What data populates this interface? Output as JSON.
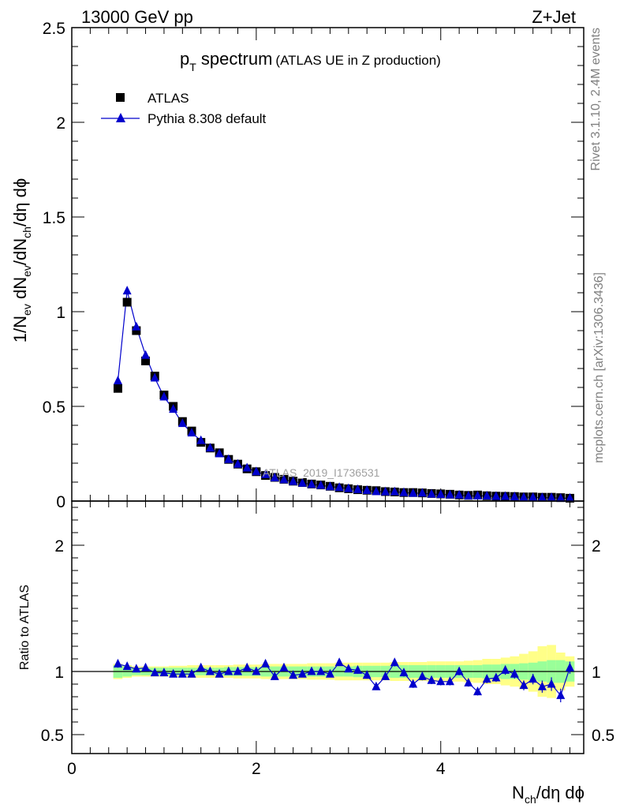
{
  "header": {
    "left": "13000 GeV pp",
    "right": "Z+Jet"
  },
  "title": {
    "main_p": "p",
    "main_sub": "T",
    "main_rest": " spectrum",
    "paren": "(ATLAS UE in Z production)"
  },
  "side": {
    "rivet": "Rivet 3.1.10,  2.4M events",
    "mcplots": "mcplots.cern.ch [arXiv:1306.3436]"
  },
  "watermark": "ATLAS_2019_I1736531",
  "legend": {
    "data_label": "ATLAS",
    "mc_label": "Pythia 8.308 default"
  },
  "axes": {
    "ylabel_parts": [
      "1/N",
      "ev",
      " dN",
      "ev",
      "/dN",
      "ch",
      "/dη dϕ"
    ],
    "ratio_ylabel": "Ratio to ATLAS",
    "xlabel_parts": [
      "N",
      "ch",
      "/dη dϕ"
    ]
  },
  "colors": {
    "data": "#000000",
    "mc": "#0000cc",
    "band_inner": "#99ff99",
    "band_outer": "#ffff88",
    "side_text": "#808080"
  },
  "chart_data": [
    {
      "type": "scatter",
      "panel": "main",
      "xlim": [
        0,
        5.55
      ],
      "ylim": [
        0,
        2.5
      ],
      "y_ticks": [
        "0",
        "0.5",
        "1",
        "1.5",
        "2",
        "2.5"
      ],
      "y_tick_values": [
        0,
        0.5,
        1,
        1.5,
        2,
        2.5
      ],
      "x": [
        0.5,
        0.6,
        0.7,
        0.8,
        0.9,
        1.0,
        1.1,
        1.2,
        1.3,
        1.4,
        1.5,
        1.6,
        1.7,
        1.8,
        1.9,
        2.0,
        2.1,
        2.2,
        2.3,
        2.4,
        2.5,
        2.6,
        2.7,
        2.8,
        2.9,
        3.0,
        3.1,
        3.2,
        3.3,
        3.4,
        3.5,
        3.6,
        3.7,
        3.8,
        3.9,
        4.0,
        4.1,
        4.2,
        4.3,
        4.4,
        4.5,
        4.6,
        4.7,
        4.8,
        4.9,
        5.0,
        5.1,
        5.2,
        5.3,
        5.4
      ],
      "series": [
        {
          "name": "ATLAS",
          "values": [
            0.595,
            1.05,
            0.9,
            0.74,
            0.66,
            0.56,
            0.5,
            0.42,
            0.37,
            0.31,
            0.28,
            0.255,
            0.22,
            0.195,
            0.17,
            0.155,
            0.135,
            0.125,
            0.115,
            0.105,
            0.098,
            0.09,
            0.085,
            0.078,
            0.07,
            0.065,
            0.06,
            0.057,
            0.055,
            0.05,
            0.048,
            0.045,
            0.045,
            0.043,
            0.04,
            0.038,
            0.036,
            0.032,
            0.03,
            0.032,
            0.028,
            0.026,
            0.025,
            0.024,
            0.022,
            0.022,
            0.02,
            0.02,
            0.018,
            0.015
          ]
        },
        {
          "name": "Pythia 8.308 default",
          "values": [
            0.635,
            1.11,
            0.92,
            0.77,
            0.65,
            0.55,
            0.485,
            0.41,
            0.36,
            0.32,
            0.28,
            0.25,
            0.22,
            0.195,
            0.175,
            0.155,
            0.14,
            0.123,
            0.113,
            0.103,
            0.095,
            0.088,
            0.083,
            0.076,
            0.072,
            0.066,
            0.061,
            0.056,
            0.05,
            0.049,
            0.049,
            0.045,
            0.041,
            0.042,
            0.037,
            0.035,
            0.033,
            0.032,
            0.027,
            0.027,
            0.027,
            0.025,
            0.025,
            0.023,
            0.02,
            0.02,
            0.018,
            0.018,
            0.015,
            0.015
          ]
        }
      ]
    },
    {
      "type": "line",
      "panel": "ratio",
      "xlim": [
        0,
        5.55
      ],
      "ylim": [
        0.35,
        2.35
      ],
      "x_ticks": [
        "0",
        "2",
        "4"
      ],
      "x_tick_values": [
        0,
        2,
        4
      ],
      "y_ticks": [
        "0.5",
        "1",
        "2"
      ],
      "y_tick_values": [
        0.5,
        1,
        2
      ],
      "x": [
        0.5,
        0.6,
        0.7,
        0.8,
        0.9,
        1.0,
        1.1,
        1.2,
        1.3,
        1.4,
        1.5,
        1.6,
        1.7,
        1.8,
        1.9,
        2.0,
        2.1,
        2.2,
        2.3,
        2.4,
        2.5,
        2.6,
        2.7,
        2.8,
        2.9,
        3.0,
        3.1,
        3.2,
        3.3,
        3.4,
        3.5,
        3.6,
        3.7,
        3.8,
        3.9,
        4.0,
        4.1,
        4.2,
        4.3,
        4.4,
        4.5,
        4.6,
        4.7,
        4.8,
        4.9,
        5.0,
        5.1,
        5.2,
        5.3,
        5.4
      ],
      "series": [
        {
          "name": "Pythia 8.308 default",
          "values": [
            1.06,
            1.04,
            1.02,
            1.03,
            0.99,
            0.99,
            0.98,
            0.98,
            0.98,
            1.03,
            1.0,
            0.98,
            1.0,
            1.0,
            1.03,
            1.0,
            1.06,
            0.96,
            1.03,
            0.97,
            0.98,
            1.0,
            1.0,
            0.98,
            1.07,
            1.02,
            1.01,
            0.97,
            0.88,
            0.96,
            1.07,
            0.99,
            0.9,
            0.96,
            0.93,
            0.92,
            0.92,
            1.0,
            0.91,
            0.84,
            0.94,
            0.95,
            1.01,
            0.98,
            0.89,
            0.94,
            0.88,
            0.9,
            0.81,
            1.03
          ]
        }
      ],
      "band_inner_halfwidth": [
        0.05,
        0.04,
        0.03,
        0.03,
        0.03,
        0.03,
        0.03,
        0.03,
        0.03,
        0.03,
        0.03,
        0.03,
        0.035,
        0.035,
        0.035,
        0.035,
        0.04,
        0.04,
        0.04,
        0.04,
        0.04,
        0.04,
        0.04,
        0.04,
        0.04,
        0.04,
        0.045,
        0.045,
        0.045,
        0.045,
        0.05,
        0.05,
        0.05,
        0.05,
        0.05,
        0.05,
        0.05,
        0.05,
        0.05,
        0.05,
        0.055,
        0.055,
        0.06,
        0.06,
        0.065,
        0.07,
        0.08,
        0.09,
        0.09,
        0.08
      ],
      "band_outer_halfwidth": [
        0.06,
        0.05,
        0.04,
        0.04,
        0.04,
        0.04,
        0.045,
        0.045,
        0.05,
        0.05,
        0.05,
        0.05,
        0.05,
        0.055,
        0.055,
        0.055,
        0.06,
        0.06,
        0.06,
        0.06,
        0.06,
        0.065,
        0.065,
        0.065,
        0.07,
        0.07,
        0.07,
        0.07,
        0.07,
        0.07,
        0.075,
        0.075,
        0.075,
        0.075,
        0.08,
        0.08,
        0.08,
        0.08,
        0.085,
        0.09,
        0.1,
        0.1,
        0.11,
        0.12,
        0.14,
        0.16,
        0.2,
        0.21,
        0.15,
        0.12
      ]
    }
  ]
}
